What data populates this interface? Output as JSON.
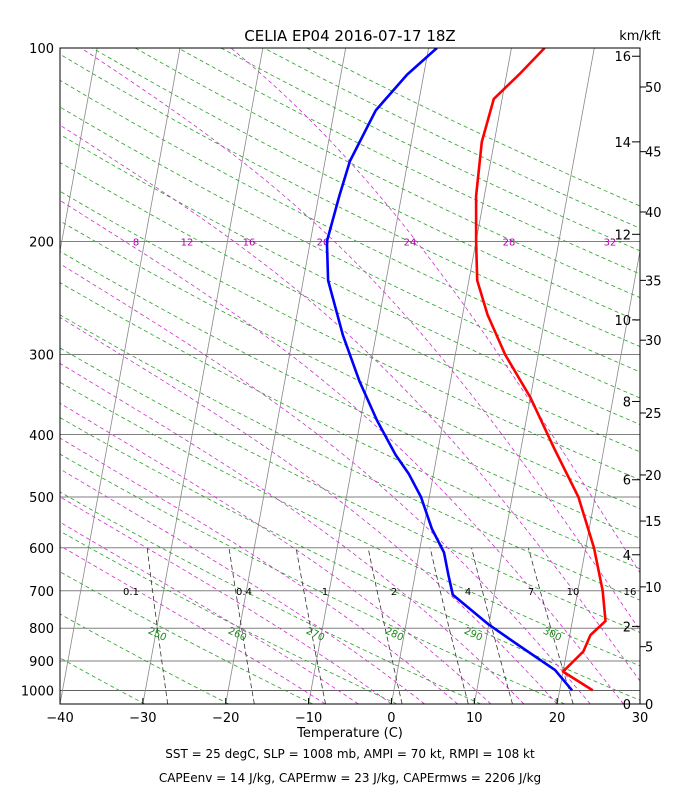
{
  "chart_data": {
    "type": "line",
    "title": "CELIA EP04 2016-07-17 18Z",
    "xlabel": "Temperature (C)",
    "ylabel": "",
    "right_axis_label": "km/kft",
    "xlim": [
      -40,
      30
    ],
    "ylim_mb": [
      1050,
      100
    ],
    "pressure_ticks": [
      1000,
      900,
      800,
      700,
      600,
      500,
      400,
      300,
      200,
      100
    ],
    "temperature_ticks": [
      -40,
      -30,
      -20,
      -10,
      0,
      10,
      20,
      30
    ],
    "km_ticks": [
      {
        "label": "0",
        "p": 1050
      },
      {
        "label": "2",
        "p": 795
      },
      {
        "label": "4",
        "p": 615
      },
      {
        "label": "6",
        "p": 470
      },
      {
        "label": "8",
        "p": 355
      },
      {
        "label": "10",
        "p": 265
      },
      {
        "label": "12",
        "p": 195
      },
      {
        "label": "14",
        "p": 140
      },
      {
        "label": "16",
        "p": 103
      }
    ],
    "kft_ticks": [
      {
        "label": "0",
        "p": 1050
      },
      {
        "label": "5",
        "p": 855
      },
      {
        "label": "10",
        "p": 690
      },
      {
        "label": "15",
        "p": 545
      },
      {
        "label": "20",
        "p": 462
      },
      {
        "label": "25",
        "p": 370
      },
      {
        "label": "30",
        "p": 285
      },
      {
        "label": "35",
        "p": 230
      },
      {
        "label": "40",
        "p": 180
      },
      {
        "label": "45",
        "p": 145
      },
      {
        "label": "50",
        "p": 115
      }
    ],
    "mixing_ratio_labels": [
      "0.1",
      "0.4",
      "1",
      "2",
      "4",
      "7",
      "10",
      "16"
    ],
    "dry_adiabat_labels": [
      "250",
      "260",
      "270",
      "280",
      "290",
      "300"
    ],
    "moist_adiabat_labels": [
      "8",
      "12",
      "16",
      "20",
      "24",
      "28",
      "32"
    ],
    "series": [
      {
        "name": "",
        "color": "#ff0000",
        "points": [
          [
            24,
            1000
          ],
          [
            20,
            935
          ],
          [
            22,
            870
          ],
          [
            22.5,
            820
          ],
          [
            24,
            780
          ],
          [
            23,
            700
          ],
          [
            21,
            600
          ],
          [
            18,
            500
          ],
          [
            14,
            420
          ],
          [
            10,
            350
          ],
          [
            6,
            300
          ],
          [
            3,
            260
          ],
          [
            1,
            230
          ],
          [
            0,
            200
          ],
          [
            -1,
            170
          ],
          [
            -1.5,
            140
          ],
          [
            -1,
            120
          ],
          [
            1.5,
            110
          ],
          [
            4,
            100
          ]
        ]
      },
      {
        "name": "",
        "color": "#0000ff",
        "points": [
          [
            21.5,
            1000
          ],
          [
            19,
            930
          ],
          [
            14,
            850
          ],
          [
            10,
            790
          ],
          [
            5,
            710
          ],
          [
            4,
            660
          ],
          [
            3,
            610
          ],
          [
            1,
            560
          ],
          [
            -1,
            500
          ],
          [
            -3,
            460
          ],
          [
            -5,
            430
          ],
          [
            -8,
            380
          ],
          [
            -11,
            330
          ],
          [
            -14,
            280
          ],
          [
            -17,
            230
          ],
          [
            -18,
            200
          ],
          [
            -17.5,
            170
          ],
          [
            -17,
            150
          ],
          [
            -15,
            125
          ],
          [
            -12,
            110
          ],
          [
            -9,
            100
          ]
        ]
      }
    ],
    "footer_lines": [
      "SST = 25 degC, SLP = 1008 mb, AMPI = 70 kt, RMPI = 108 kt",
      "CAPEenv = 14 J/kg, CAPErmw = 23 J/kg, CAPErmws = 2206 J/kg"
    ]
  }
}
